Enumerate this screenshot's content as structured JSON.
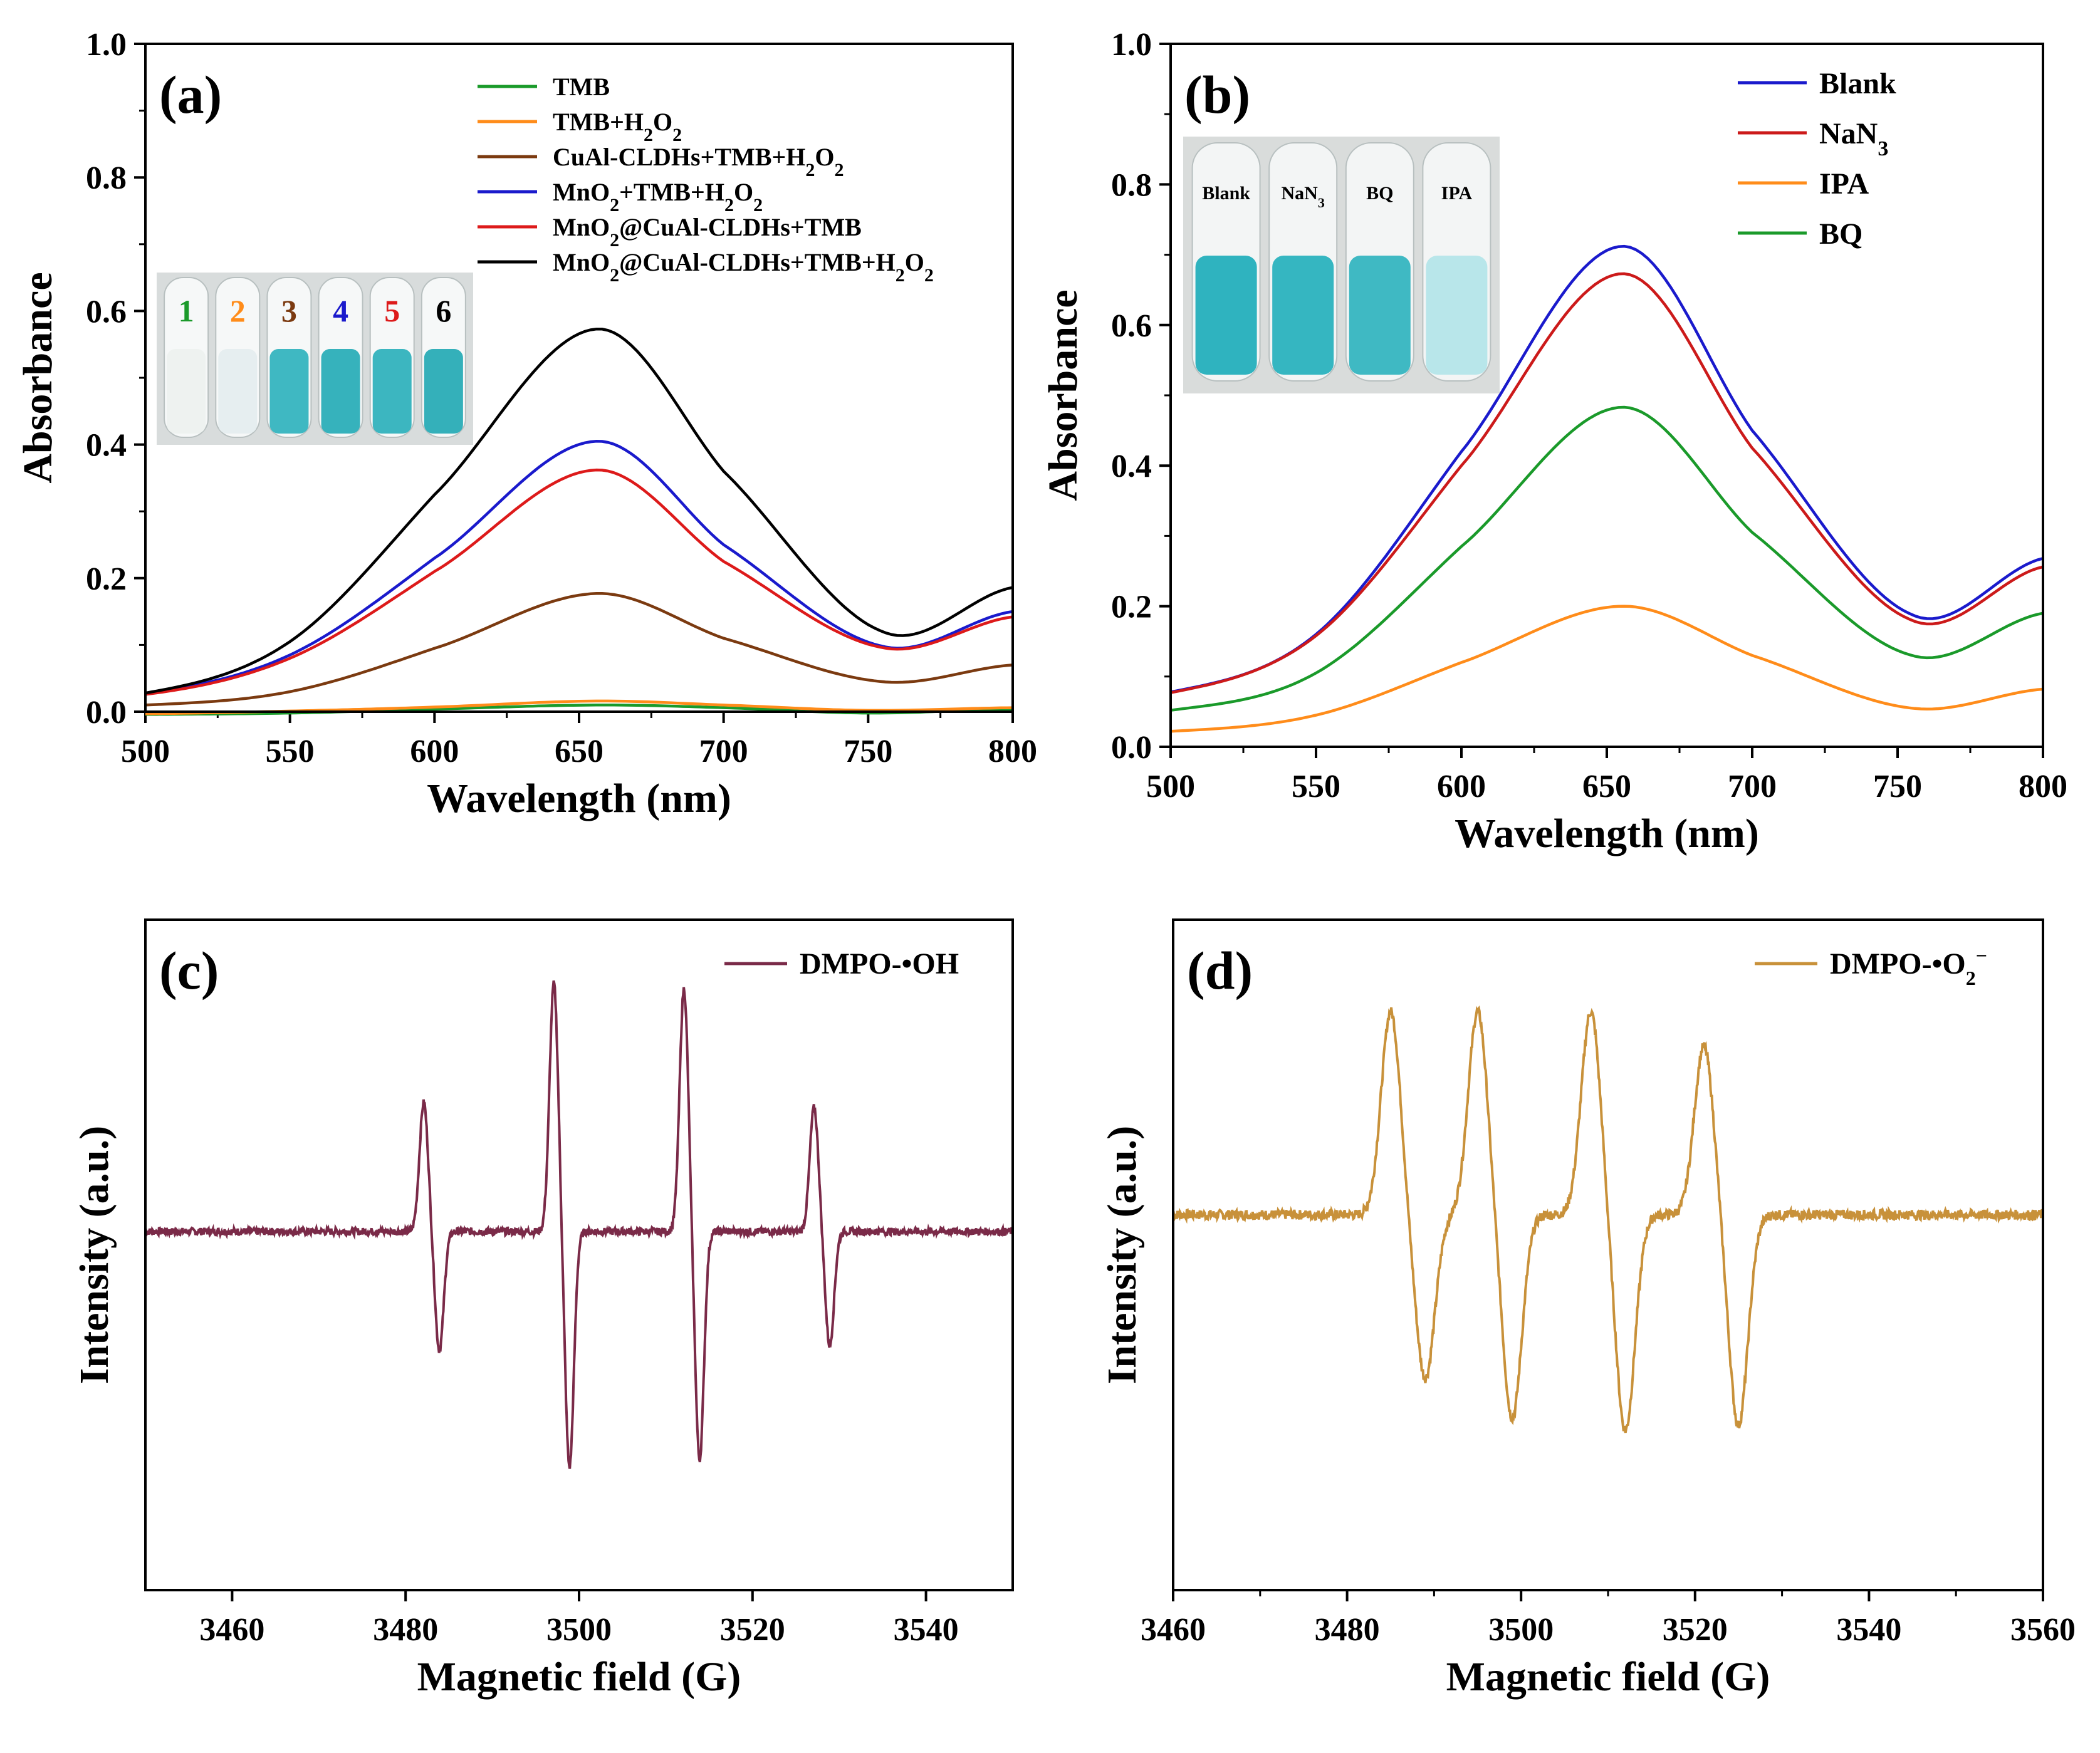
{
  "figure": {
    "domain": "Chart"
  },
  "chart_data": [
    {
      "panel": "(a)",
      "type": "line",
      "xlabel": "Wavelength (nm)",
      "ylabel": "Absorbance",
      "xlim": [
        500,
        800
      ],
      "ylim": [
        0,
        1.0
      ],
      "xticks": [
        "500",
        "550",
        "600",
        "650",
        "700",
        "750",
        "800"
      ],
      "yticks": [
        "0.0",
        "0.2",
        "0.4",
        "0.6",
        "0.8",
        "1.0"
      ],
      "legend_position": "top-right",
      "series": [
        {
          "name": "TMB",
          "color": "#1a9a2a",
          "points": [
            [
              500,
              -0.004
            ],
            [
              550,
              -0.002
            ],
            [
              600,
              0.004
            ],
            [
              656,
              0.01
            ],
            [
              700,
              0.006
            ],
            [
              750,
              -0.002
            ],
            [
              800,
              0.004
            ]
          ]
        },
        {
          "name": "TMB+H2O2",
          "color": "#ff8c1a",
          "points": [
            [
              500,
              -0.003
            ],
            [
              550,
              0.001
            ],
            [
              600,
              0.007
            ],
            [
              656,
              0.016
            ],
            [
              700,
              0.01
            ],
            [
              750,
              0.002
            ],
            [
              800,
              0.006
            ]
          ]
        },
        {
          "name": "CuAl-CLDHs+TMB+H2O2",
          "color": "#7b3a10",
          "points": [
            [
              500,
              0.01
            ],
            [
              550,
              0.03
            ],
            [
              600,
              0.095
            ],
            [
              656,
              0.177
            ],
            [
              700,
              0.11
            ],
            [
              755,
              0.045
            ],
            [
              800,
              0.07
            ]
          ]
        },
        {
          "name": "MnO2+TMB+H2O2",
          "color": "#1a1acc",
          "points": [
            [
              500,
              0.028
            ],
            [
              550,
              0.085
            ],
            [
              600,
              0.23
            ],
            [
              656,
              0.405
            ],
            [
              700,
              0.25
            ],
            [
              755,
              0.098
            ],
            [
              800,
              0.15
            ]
          ]
        },
        {
          "name": "MnO2@CuAl-CLDHs+TMB",
          "color": "#dd1a1a",
          "points": [
            [
              500,
              0.026
            ],
            [
              550,
              0.08
            ],
            [
              600,
              0.21
            ],
            [
              656,
              0.362
            ],
            [
              700,
              0.225
            ],
            [
              755,
              0.096
            ],
            [
              800,
              0.142
            ]
          ]
        },
        {
          "name": "MnO2@CuAl-CLDHs+TMB+H2O2",
          "color": "#000000",
          "points": [
            [
              500,
              0.028
            ],
            [
              550,
              0.105
            ],
            [
              600,
              0.325
            ],
            [
              656,
              0.573
            ],
            [
              700,
              0.36
            ],
            [
              755,
              0.12
            ],
            [
              800,
              0.186
            ]
          ]
        }
      ],
      "legend": [
        {
          "pre": "TMB",
          "sub": "",
          "post": "",
          "sub2": "",
          "post2": ""
        },
        {
          "pre": "TMB+H",
          "sub": "2",
          "post": "O",
          "sub2": "2",
          "post2": ""
        },
        {
          "pre": "CuAl-CLDHs+TMB+H",
          "sub": "2",
          "post": "O",
          "sub2": "2",
          "post2": ""
        },
        {
          "pre": "MnO",
          "sub": "2",
          "post": "+TMB+H",
          "sub2": "2",
          "post2": "O₂"
        },
        {
          "pre": "MnO",
          "sub": "2",
          "post": "@CuAl-CLDHs+TMB",
          "sub2": "",
          "post2": ""
        },
        {
          "pre": "MnO",
          "sub": "2",
          "post": "@CuAl-CLDHs+TMB+H",
          "sub2": "2",
          "post2": "O₂"
        }
      ],
      "inset_labels": [
        {
          "text": "1",
          "color": "#1a9a2a"
        },
        {
          "text": "2",
          "color": "#ff8c1a"
        },
        {
          "text": "3",
          "color": "#7b3a10"
        },
        {
          "text": "4",
          "color": "#1a1acc"
        },
        {
          "text": "5",
          "color": "#dd1a1a"
        },
        {
          "text": "6",
          "color": "#000000"
        }
      ]
    },
    {
      "panel": "(b)",
      "type": "line",
      "xlabel": "Wavelength (nm)",
      "ylabel": "Absorbance",
      "xlim": [
        500,
        800
      ],
      "ylim": [
        0,
        1.0
      ],
      "xticks": [
        "500",
        "550",
        "600",
        "650",
        "700",
        "750",
        "800"
      ],
      "yticks": [
        "0.0",
        "0.2",
        "0.4",
        "0.6",
        "0.8",
        "1.0"
      ],
      "legend_position": "top-right",
      "series": [
        {
          "name": "Blank",
          "color": "#1a1acc",
          "points": [
            [
              500,
              0.078
            ],
            [
              550,
              0.16
            ],
            [
              600,
              0.42
            ],
            [
              655,
              0.712
            ],
            [
              700,
              0.45
            ],
            [
              755,
              0.188
            ],
            [
              800,
              0.268
            ]
          ]
        },
        {
          "name": "NaN3",
          "color": "#cc1a1a",
          "points": [
            [
              500,
              0.077
            ],
            [
              550,
              0.158
            ],
            [
              600,
              0.4
            ],
            [
              655,
              0.673
            ],
            [
              700,
              0.425
            ],
            [
              755,
              0.18
            ],
            [
              800,
              0.256
            ]
          ]
        },
        {
          "name": "IPA",
          "color": "#ff8c1a",
          "points": [
            [
              500,
              0.022
            ],
            [
              550,
              0.045
            ],
            [
              600,
              0.12
            ],
            [
              655,
              0.2
            ],
            [
              700,
              0.13
            ],
            [
              755,
              0.055
            ],
            [
              800,
              0.082
            ]
          ]
        },
        {
          "name": "BQ",
          "color": "#1a9a2a",
          "points": [
            [
              500,
              0.052
            ],
            [
              550,
              0.105
            ],
            [
              600,
              0.285
            ],
            [
              655,
              0.483
            ],
            [
              700,
              0.305
            ],
            [
              755,
              0.13
            ],
            [
              800,
              0.19
            ]
          ]
        }
      ],
      "legend": [
        {
          "pre": "Blank",
          "sub": ""
        },
        {
          "pre": "NaN",
          "sub": "3"
        },
        {
          "pre": "IPA",
          "sub": ""
        },
        {
          "pre": "BQ",
          "sub": ""
        }
      ],
      "inset_labels": [
        {
          "pre": "Blank",
          "sub": ""
        },
        {
          "pre": "NaN",
          "sub": "3"
        },
        {
          "pre": "BQ",
          "sub": ""
        },
        {
          "pre": "IPA",
          "sub": ""
        }
      ]
    },
    {
      "panel": "(c)",
      "type": "line",
      "xlabel": "Magnetic field (G)",
      "ylabel": "Intensity (a.u.)",
      "xlim": [
        3450,
        3550
      ],
      "ylim": [
        -1.0,
        1.0
      ],
      "xticks": [
        "3460",
        "3480",
        "3500",
        "3520",
        "3540"
      ],
      "legend_position": "top-right",
      "series": [
        {
          "name": "DMPO-•OH",
          "color": "#7a2a48",
          "baseline": 0.0,
          "noise": 0.015,
          "lines": [
            [
              3483,
              0.52,
              -0.48
            ],
            [
              3498,
              1.0,
              -0.95
            ],
            [
              3513,
              0.98,
              -0.92
            ],
            [
              3528,
              0.5,
              -0.46
            ]
          ],
          "width": 1.0
        }
      ],
      "legend": [
        {
          "pre": "DMPO-•OH",
          "sub": "",
          "sup": ""
        }
      ]
    },
    {
      "panel": "(d)",
      "type": "line",
      "xlabel": "Magnetic field (G)",
      "ylabel": "Intensity (a.u.)",
      "xlim": [
        3460,
        3560
      ],
      "ylim": [
        -1.0,
        1.0
      ],
      "xticks": [
        "3460",
        "3480",
        "3500",
        "3520",
        "3540",
        "3560"
      ],
      "legend_position": "top-right",
      "series": [
        {
          "name": "DMPO-•O2−",
          "color": "#c8913a",
          "baseline": 0.0,
          "noise": 0.02,
          "lines": [
            [
              3487,
              0.82,
              -0.66
            ],
            [
              3497,
              0.82,
              -0.82
            ],
            [
              3510,
              0.82,
              -0.87
            ],
            [
              3523,
              0.68,
              -0.85
            ]
          ],
          "width": 2.2
        }
      ],
      "legend": [
        {
          "pre": "DMPO-•O",
          "sub": "2",
          "sup": "−"
        }
      ]
    }
  ]
}
